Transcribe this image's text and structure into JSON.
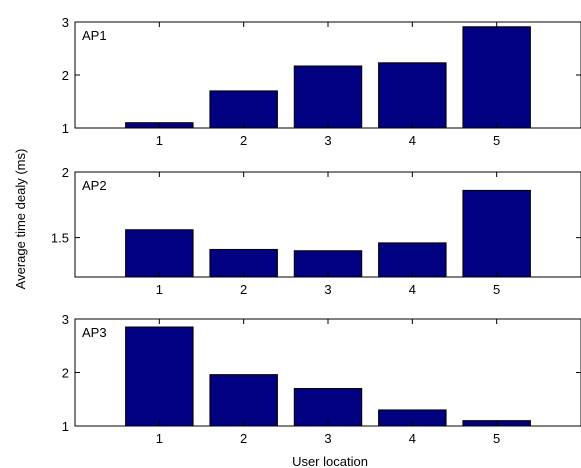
{
  "figure": {
    "ylabel": "Average time dealy (ms)",
    "xlabel": "User location",
    "bar_color": "#000080"
  },
  "chart_data": [
    {
      "type": "bar",
      "panel_label": "AP1",
      "categories": [
        "1",
        "2",
        "3",
        "4",
        "5"
      ],
      "values": [
        1.1,
        1.7,
        2.17,
        2.23,
        2.91
      ],
      "ylim": [
        1,
        3
      ],
      "yticks": [
        "1",
        "2",
        "3"
      ],
      "ytick_values": [
        1,
        2,
        3
      ]
    },
    {
      "type": "bar",
      "panel_label": "AP2",
      "categories": [
        "1",
        "2",
        "3",
        "4",
        "5"
      ],
      "values": [
        1.56,
        1.41,
        1.4,
        1.46,
        1.86
      ],
      "ylim": [
        1.2,
        2
      ],
      "yticks": [
        "1.5",
        "2"
      ],
      "ytick_values": [
        1.5,
        2
      ]
    },
    {
      "type": "bar",
      "panel_label": "AP3",
      "categories": [
        "1",
        "2",
        "3",
        "4",
        "5"
      ],
      "values": [
        2.85,
        1.96,
        1.7,
        1.3,
        1.1
      ],
      "ylim": [
        1,
        3
      ],
      "yticks": [
        "1",
        "2",
        "3"
      ],
      "ytick_values": [
        1,
        2,
        3
      ]
    }
  ]
}
